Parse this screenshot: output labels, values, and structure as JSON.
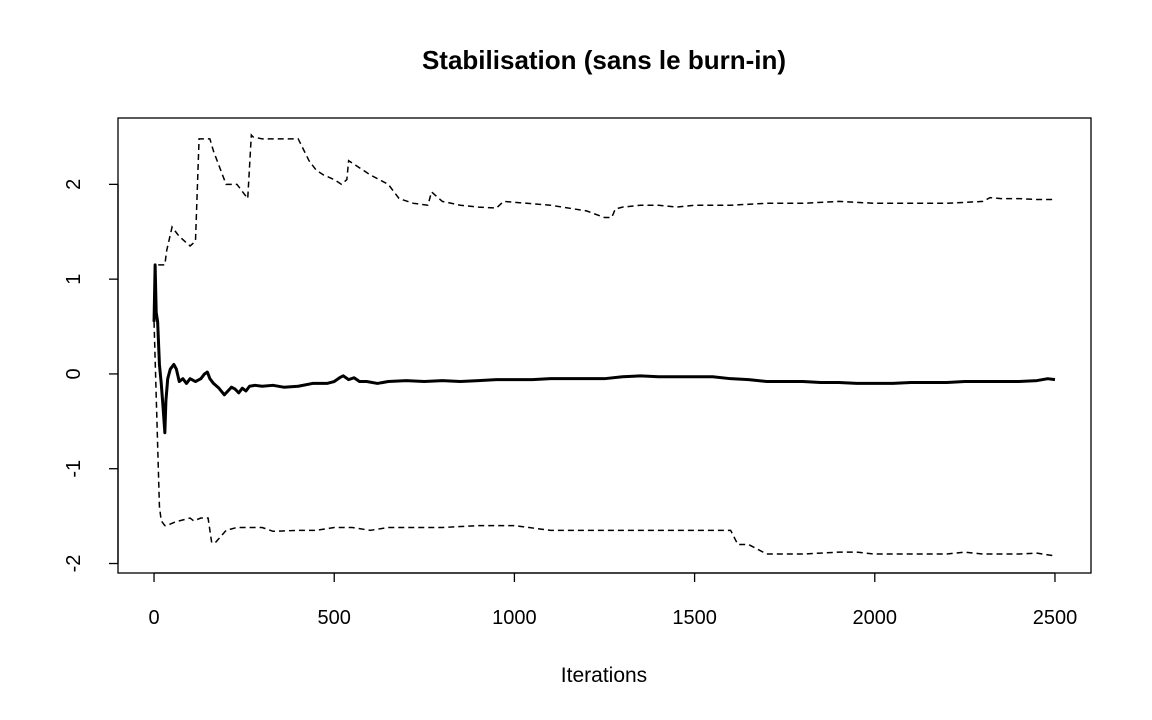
{
  "chart_data": {
    "type": "line",
    "title": "Stabilisation (sans le burn-in)",
    "xlabel": "Iterations",
    "ylabel": "",
    "xlim": [
      -100,
      2600
    ],
    "ylim": [
      -2.1,
      2.7
    ],
    "xticks": [
      0,
      500,
      1000,
      1500,
      2000,
      2500
    ],
    "xtick_labels": [
      "0",
      "500",
      "1000",
      "1500",
      "2000",
      "2500"
    ],
    "yticks": [
      -2,
      -1,
      0,
      1,
      2
    ],
    "ytick_labels": [
      "-2",
      "-1",
      "0",
      "1",
      "2"
    ],
    "grid": false,
    "legend": "none",
    "series": [
      {
        "style": "solid",
        "x": [
          0,
          3,
          6,
          10,
          15,
          20,
          25,
          30,
          33,
          38,
          45,
          55,
          62,
          70,
          80,
          90,
          100,
          115,
          130,
          140,
          148,
          155,
          165,
          180,
          195,
          205,
          215,
          225,
          235,
          245,
          255,
          265,
          280,
          300,
          330,
          360,
          400,
          440,
          480,
          500,
          515,
          525,
          540,
          555,
          570,
          590,
          620,
          650,
          700,
          750,
          800,
          850,
          900,
          950,
          1000,
          1050,
          1100,
          1150,
          1200,
          1250,
          1300,
          1350,
          1400,
          1450,
          1500,
          1550,
          1600,
          1650,
          1700,
          1750,
          1800,
          1850,
          1900,
          1950,
          2000,
          2050,
          2100,
          2150,
          2200,
          2250,
          2300,
          2350,
          2400,
          2450,
          2480,
          2500
        ],
        "y": [
          0.55,
          1.15,
          0.65,
          0.55,
          0.1,
          -0.1,
          -0.35,
          -0.62,
          -0.28,
          -0.05,
          0.05,
          0.1,
          0.05,
          -0.08,
          -0.05,
          -0.1,
          -0.05,
          -0.08,
          -0.05,
          0.0,
          0.02,
          -0.05,
          -0.1,
          -0.15,
          -0.22,
          -0.18,
          -0.14,
          -0.16,
          -0.2,
          -0.15,
          -0.18,
          -0.13,
          -0.12,
          -0.13,
          -0.12,
          -0.14,
          -0.13,
          -0.1,
          -0.1,
          -0.08,
          -0.04,
          -0.02,
          -0.06,
          -0.04,
          -0.08,
          -0.08,
          -0.1,
          -0.08,
          -0.07,
          -0.08,
          -0.07,
          -0.08,
          -0.07,
          -0.06,
          -0.06,
          -0.06,
          -0.05,
          -0.05,
          -0.05,
          -0.05,
          -0.03,
          -0.02,
          -0.03,
          -0.03,
          -0.03,
          -0.03,
          -0.05,
          -0.06,
          -0.08,
          -0.08,
          -0.08,
          -0.09,
          -0.09,
          -0.1,
          -0.1,
          -0.1,
          -0.09,
          -0.09,
          -0.09,
          -0.08,
          -0.08,
          -0.08,
          -0.08,
          -0.07,
          -0.05,
          -0.06
        ]
      },
      {
        "style": "dashed",
        "x": [
          0,
          3,
          5,
          30,
          35,
          50,
          60,
          70,
          100,
          115,
          125,
          140,
          155,
          165,
          200,
          230,
          260,
          270,
          275,
          300,
          400,
          430,
          450,
          470,
          500,
          520,
          535,
          540,
          560,
          600,
          650,
          680,
          720,
          760,
          770,
          800,
          850,
          900,
          950,
          970,
          1100,
          1200,
          1250,
          1270,
          1280,
          1300,
          1350,
          1400,
          1450,
          1500,
          1600,
          1700,
          1800,
          1900,
          2000,
          2100,
          2200,
          2300,
          2320,
          2350,
          2400,
          2450,
          2500
        ],
        "y": [
          0.55,
          1.15,
          1.15,
          1.15,
          1.3,
          1.55,
          1.5,
          1.45,
          1.35,
          1.4,
          2.48,
          2.48,
          2.48,
          2.35,
          2.0,
          2.0,
          1.85,
          2.52,
          2.5,
          2.48,
          2.48,
          2.25,
          2.15,
          2.1,
          2.05,
          2.0,
          2.05,
          2.25,
          2.2,
          2.1,
          2.0,
          1.85,
          1.8,
          1.78,
          1.92,
          1.82,
          1.78,
          1.76,
          1.75,
          1.82,
          1.78,
          1.72,
          1.65,
          1.65,
          1.74,
          1.76,
          1.78,
          1.78,
          1.76,
          1.78,
          1.78,
          1.8,
          1.8,
          1.82,
          1.8,
          1.8,
          1.8,
          1.82,
          1.86,
          1.85,
          1.85,
          1.84,
          1.84
        ]
      },
      {
        "style": "dashed",
        "x": [
          0,
          5,
          15,
          20,
          30,
          35,
          60,
          100,
          110,
          130,
          150,
          160,
          170,
          200,
          230,
          300,
          330,
          400,
          450,
          500,
          550,
          600,
          650,
          700,
          800,
          900,
          1000,
          1100,
          1200,
          1300,
          1400,
          1500,
          1600,
          1620,
          1650,
          1700,
          1750,
          1800,
          1850,
          1900,
          1950,
          2000,
          2100,
          2200,
          2250,
          2300,
          2400,
          2450,
          2500
        ],
        "y": [
          0.55,
          -0.1,
          -1.4,
          -1.55,
          -1.6,
          -1.6,
          -1.56,
          -1.52,
          -1.55,
          -1.52,
          -1.52,
          -1.78,
          -1.78,
          -1.65,
          -1.62,
          -1.62,
          -1.66,
          -1.65,
          -1.65,
          -1.62,
          -1.62,
          -1.65,
          -1.62,
          -1.62,
          -1.62,
          -1.6,
          -1.6,
          -1.65,
          -1.65,
          -1.65,
          -1.65,
          -1.65,
          -1.65,
          -1.8,
          -1.8,
          -1.9,
          -1.9,
          -1.9,
          -1.89,
          -1.88,
          -1.88,
          -1.9,
          -1.9,
          -1.9,
          -1.88,
          -1.9,
          -1.9,
          -1.89,
          -1.92
        ]
      }
    ]
  }
}
